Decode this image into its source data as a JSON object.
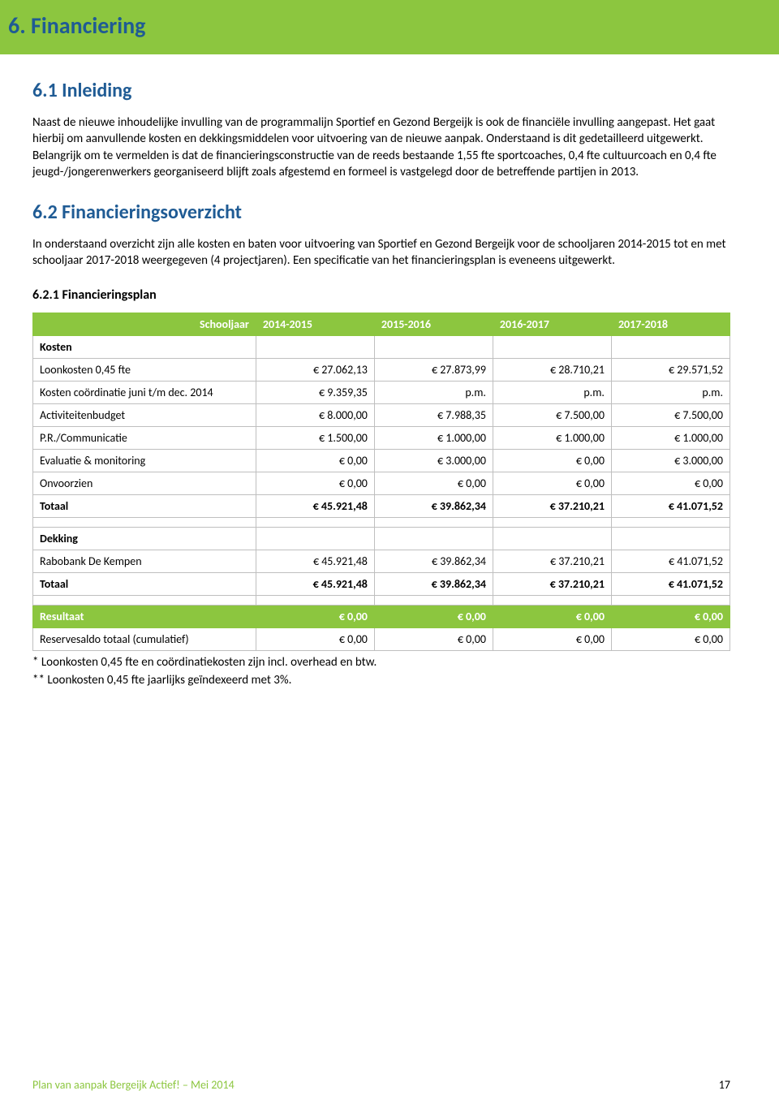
{
  "colors": {
    "green": "#8cc63f",
    "blue": "#1f5b94",
    "border": "#bfbfbf",
    "white": "#ffffff"
  },
  "banner_title": "6. Financiering",
  "section1": {
    "heading": "6.1 Inleiding",
    "para": "Naast de nieuwe inhoudelijke invulling van de programmalijn Sportief en Gezond Bergeijk is ook de financiële invulling aangepast. Het gaat hierbij om aanvullende kosten en dekkingsmiddelen voor uitvoering van de nieuwe aanpak. Onderstaand is dit gedetailleerd uitgewerkt. Belangrijk om te vermelden is dat de financieringsconstructie van de reeds bestaande 1,55 fte sportcoaches, 0,4 fte cultuurcoach en 0,4 fte jeugd-/jongerenwerkers georganiseerd blijft zoals afgestemd en formeel is vastgelegd door de betreffende partijen in 2013."
  },
  "section2": {
    "heading": "6.2 Financieringsoverzicht",
    "para": "In onderstaand overzicht zijn alle kosten en baten voor uitvoering van Sportief en Gezond Bergeijk voor de schooljaren 2014-2015 tot en met schooljaar 2017-2018 weergegeven (4 projectjaren). Een specificatie van het financieringsplan is eveneens uitgewerkt."
  },
  "section3_heading": "6.2.1 Financieringsplan",
  "table": {
    "schooljaar_label": "Schooljaar",
    "years": [
      "2014-2015",
      "2015-2016",
      "2016-2017",
      "2017-2018"
    ],
    "kosten_label": "Kosten",
    "rows": [
      {
        "label": "Loonkosten 0,45 fte",
        "vals": [
          "€ 27.062,13",
          "€ 27.873,99",
          "€ 28.710,21",
          "€ 29.571,52"
        ]
      },
      {
        "label": "Kosten coördinatie juni t/m dec.  2014",
        "vals": [
          "€ 9.359,35",
          "p.m.",
          "p.m.",
          "p.m."
        ]
      },
      {
        "label": "Activiteitenbudget",
        "vals": [
          "€ 8.000,00",
          "€ 7.988,35",
          "€ 7.500,00",
          "€ 7.500,00"
        ]
      },
      {
        "label": "P.R./Communicatie",
        "vals": [
          "€ 1.500,00",
          "€ 1.000,00",
          "€ 1.000,00",
          "€ 1.000,00"
        ]
      },
      {
        "label": "Evaluatie & monitoring",
        "vals": [
          "€ 0,00",
          "€ 3.000,00",
          "€ 0,00",
          "€ 3.000,00"
        ]
      },
      {
        "label": "Onvoorzien",
        "vals": [
          "€ 0,00",
          "€ 0,00",
          "€ 0,00",
          "€ 0,00"
        ]
      }
    ],
    "totaal_kosten": {
      "label": "Totaal",
      "vals": [
        "€ 45.921,48",
        "€ 39.862,34",
        "€ 37.210,21",
        "€ 41.071,52"
      ]
    },
    "dekking_label": "Dekking",
    "dekking_rows": [
      {
        "label": "Rabobank De Kempen",
        "vals": [
          "€ 45.921,48",
          "€ 39.862,34",
          "€ 37.210,21",
          "€ 41.071,52"
        ]
      }
    ],
    "totaal_dekking": {
      "label": "Totaal",
      "vals": [
        "€ 45.921,48",
        "€ 39.862,34",
        "€ 37.210,21",
        "€ 41.071,52"
      ]
    },
    "resultaat": {
      "label": "Resultaat",
      "vals": [
        "€ 0,00",
        "€ 0,00",
        "€ 0,00",
        "€ 0,00"
      ]
    },
    "reserve": {
      "label": "Reservesaldo totaal (cumulatief)",
      "vals": [
        "€ 0,00",
        "€ 0,00",
        "€ 0,00",
        "€ 0,00"
      ]
    }
  },
  "footnotes": [
    "* Loonkosten 0,45 fte en coördinatiekosten zijn incl. overhead en btw.",
    "** Loonkosten 0,45 fte jaarlijks geïndexeerd met 3%."
  ],
  "footer_left": "Plan van aanpak Bergeijk Actief! – Mei 2014",
  "footer_page": "17"
}
